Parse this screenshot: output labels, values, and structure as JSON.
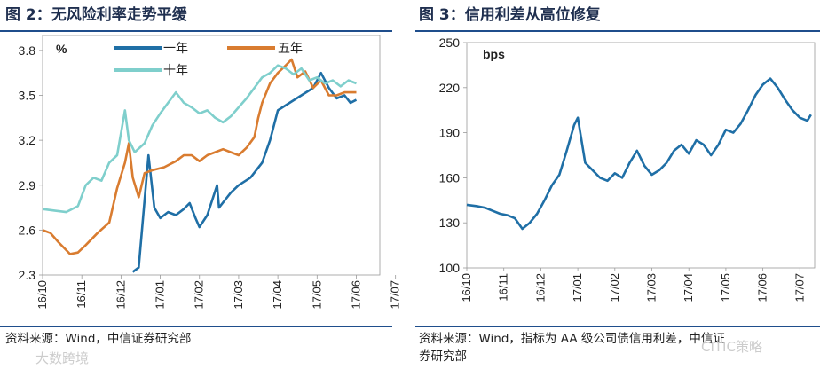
{
  "left": {
    "title": "图 2：无风险利率走势平缓",
    "source": "资料来源：Wind，中信证券研究部"
  },
  "right": {
    "title": "图 3：信用利差从高位修复",
    "source_line1": "资料来源：Wind，指标为 AA 级公司债信用利差，中信证",
    "source_line2": "券研究部"
  },
  "watermarks": {
    "left": "大数跨境",
    "right": "CITIC策略"
  },
  "colors": {
    "s1": "#1f6fa6",
    "s2": "#d97c30",
    "s3": "#7fcfcc",
    "credit": "#1f6fa6"
  },
  "chart_data": [
    {
      "type": "line",
      "title": "图 2：无风险利率走势平缓",
      "ylabel": "%",
      "ylim": [
        2.3,
        3.9
      ],
      "yticks": [
        "2.3",
        "2.6",
        "2.9",
        "3.2",
        "3.5",
        "3.8"
      ],
      "xticks": [
        "16/10",
        "16/11",
        "16/12",
        "17/01",
        "17/02",
        "17/03",
        "17/04",
        "17/05",
        "17/06",
        "17/07"
      ],
      "legend": "top",
      "series": [
        {
          "name": "一年",
          "points": [
            [
              2.3,
              2.32
            ],
            [
              2.45,
              2.35
            ],
            [
              2.6,
              2.8
            ],
            [
              2.7,
              3.1
            ],
            [
              2.85,
              2.75
            ],
            [
              3.0,
              2.68
            ],
            [
              3.2,
              2.72
            ],
            [
              3.4,
              2.7
            ],
            [
              3.6,
              2.74
            ],
            [
              3.75,
              2.78
            ],
            [
              3.9,
              2.68
            ],
            [
              4.0,
              2.62
            ],
            [
              4.2,
              2.7
            ],
            [
              4.45,
              2.9
            ],
            [
              4.5,
              2.75
            ],
            [
              4.8,
              2.85
            ],
            [
              5.0,
              2.9
            ],
            [
              5.3,
              2.95
            ],
            [
              5.6,
              3.05
            ],
            [
              5.8,
              3.2
            ],
            [
              6.0,
              3.4
            ],
            [
              6.3,
              3.45
            ],
            [
              6.6,
              3.5
            ],
            [
              6.9,
              3.55
            ],
            [
              7.1,
              3.65
            ],
            [
              7.3,
              3.55
            ],
            [
              7.5,
              3.48
            ],
            [
              7.7,
              3.5
            ],
            [
              7.85,
              3.45
            ],
            [
              8.0,
              3.47
            ]
          ]
        },
        {
          "name": "五年",
          "points": [
            [
              0.0,
              2.6
            ],
            [
              0.2,
              2.58
            ],
            [
              0.4,
              2.52
            ],
            [
              0.7,
              2.44
            ],
            [
              0.9,
              2.45
            ],
            [
              1.1,
              2.5
            ],
            [
              1.4,
              2.58
            ],
            [
              1.7,
              2.65
            ],
            [
              1.9,
              2.88
            ],
            [
              2.1,
              3.05
            ],
            [
              2.2,
              3.18
            ],
            [
              2.3,
              2.95
            ],
            [
              2.45,
              2.82
            ],
            [
              2.6,
              2.98
            ],
            [
              2.8,
              3.0
            ],
            [
              3.1,
              3.02
            ],
            [
              3.4,
              3.06
            ],
            [
              3.6,
              3.1
            ],
            [
              3.8,
              3.1
            ],
            [
              4.0,
              3.06
            ],
            [
              4.2,
              3.1
            ],
            [
              4.4,
              3.12
            ],
            [
              4.6,
              3.14
            ],
            [
              4.8,
              3.12
            ],
            [
              5.0,
              3.1
            ],
            [
              5.2,
              3.15
            ],
            [
              5.4,
              3.22
            ],
            [
              5.5,
              3.35
            ],
            [
              5.6,
              3.45
            ],
            [
              5.8,
              3.58
            ],
            [
              6.0,
              3.65
            ],
            [
              6.2,
              3.7
            ],
            [
              6.35,
              3.74
            ],
            [
              6.5,
              3.62
            ],
            [
              6.7,
              3.66
            ],
            [
              6.9,
              3.55
            ],
            [
              7.1,
              3.6
            ],
            [
              7.3,
              3.5
            ],
            [
              7.5,
              3.5
            ],
            [
              7.7,
              3.52
            ],
            [
              8.0,
              3.52
            ]
          ]
        },
        {
          "name": "十年",
          "points": [
            [
              0.0,
              2.74
            ],
            [
              0.3,
              2.73
            ],
            [
              0.6,
              2.72
            ],
            [
              0.9,
              2.76
            ],
            [
              1.1,
              2.9
            ],
            [
              1.3,
              2.95
            ],
            [
              1.5,
              2.93
            ],
            [
              1.7,
              3.05
            ],
            [
              1.9,
              3.1
            ],
            [
              2.0,
              3.25
            ],
            [
              2.1,
              3.4
            ],
            [
              2.2,
              3.2
            ],
            [
              2.35,
              3.12
            ],
            [
              2.6,
              3.18
            ],
            [
              2.8,
              3.3
            ],
            [
              3.0,
              3.38
            ],
            [
              3.2,
              3.45
            ],
            [
              3.4,
              3.52
            ],
            [
              3.6,
              3.45
            ],
            [
              3.8,
              3.42
            ],
            [
              4.0,
              3.38
            ],
            [
              4.2,
              3.4
            ],
            [
              4.4,
              3.35
            ],
            [
              4.6,
              3.32
            ],
            [
              4.8,
              3.36
            ],
            [
              5.0,
              3.42
            ],
            [
              5.2,
              3.48
            ],
            [
              5.4,
              3.55
            ],
            [
              5.6,
              3.62
            ],
            [
              5.8,
              3.65
            ],
            [
              6.0,
              3.7
            ],
            [
              6.2,
              3.68
            ],
            [
              6.4,
              3.64
            ],
            [
              6.6,
              3.68
            ],
            [
              6.8,
              3.6
            ],
            [
              7.0,
              3.62
            ],
            [
              7.2,
              3.58
            ],
            [
              7.4,
              3.6
            ],
            [
              7.6,
              3.56
            ],
            [
              7.8,
              3.6
            ],
            [
              8.0,
              3.58
            ]
          ]
        }
      ]
    },
    {
      "type": "line",
      "title": "图 3：信用利差从高位修复",
      "ylabel": "bps",
      "ylim": [
        100,
        250
      ],
      "yticks": [
        "100",
        "130",
        "160",
        "190",
        "220",
        "250"
      ],
      "xticks": [
        "16/10",
        "16/11",
        "16/12",
        "17/01",
        "17/02",
        "17/03",
        "17/04",
        "17/05",
        "17/06",
        "17/07"
      ],
      "series": [
        {
          "name": "",
          "points": [
            [
              0.0,
              142
            ],
            [
              0.3,
              141
            ],
            [
              0.5,
              140
            ],
            [
              0.7,
              138
            ],
            [
              0.9,
              136
            ],
            [
              1.1,
              135
            ],
            [
              1.3,
              133
            ],
            [
              1.5,
              126
            ],
            [
              1.7,
              130
            ],
            [
              1.9,
              136
            ],
            [
              2.1,
              145
            ],
            [
              2.3,
              155
            ],
            [
              2.5,
              162
            ],
            [
              2.7,
              178
            ],
            [
              2.9,
              195
            ],
            [
              3.0,
              200
            ],
            [
              3.2,
              170
            ],
            [
              3.4,
              165
            ],
            [
              3.6,
              160
            ],
            [
              3.8,
              158
            ],
            [
              4.0,
              163
            ],
            [
              4.2,
              160
            ],
            [
              4.4,
              170
            ],
            [
              4.6,
              178
            ],
            [
              4.8,
              168
            ],
            [
              5.0,
              162
            ],
            [
              5.2,
              165
            ],
            [
              5.4,
              170
            ],
            [
              5.6,
              178
            ],
            [
              5.8,
              182
            ],
            [
              6.0,
              176
            ],
            [
              6.2,
              185
            ],
            [
              6.4,
              182
            ],
            [
              6.6,
              175
            ],
            [
              6.8,
              182
            ],
            [
              7.0,
              192
            ],
            [
              7.2,
              190
            ],
            [
              7.4,
              196
            ],
            [
              7.6,
              205
            ],
            [
              7.8,
              215
            ],
            [
              8.0,
              222
            ],
            [
              8.2,
              226
            ],
            [
              8.4,
              220
            ],
            [
              8.6,
              212
            ],
            [
              8.8,
              205
            ],
            [
              9.0,
              200
            ],
            [
              9.2,
              198
            ],
            [
              9.3,
              202
            ]
          ]
        }
      ]
    }
  ]
}
